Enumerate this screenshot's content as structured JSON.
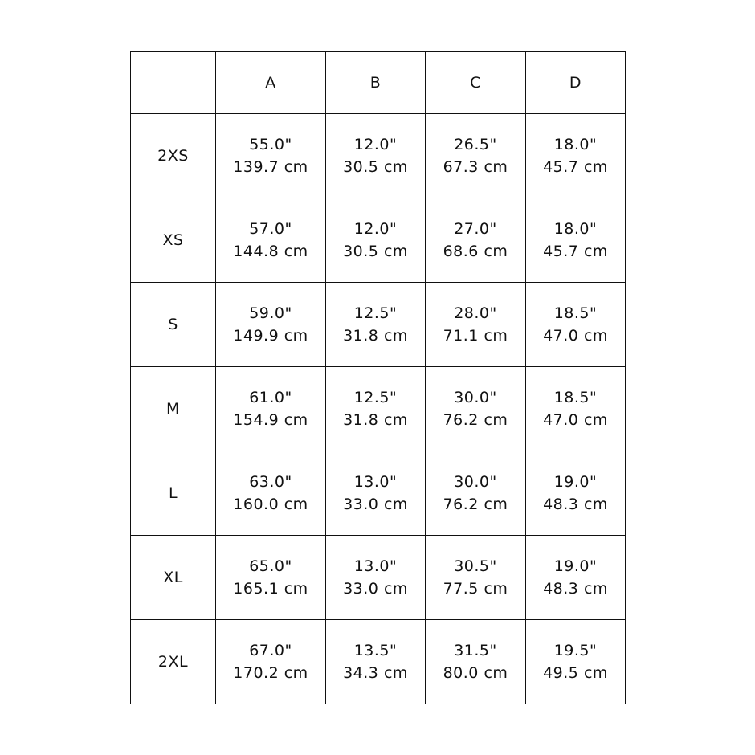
{
  "table": {
    "headers": [
      "",
      "A",
      "B",
      "C",
      "D"
    ],
    "rows": [
      {
        "size": "2XS",
        "cells": [
          [
            "55.0\"",
            "139.7 cm"
          ],
          [
            "12.0\"",
            "30.5 cm"
          ],
          [
            "26.5\"",
            "67.3 cm"
          ],
          [
            "18.0\"",
            "45.7 cm"
          ]
        ]
      },
      {
        "size": "XS",
        "cells": [
          [
            "57.0\"",
            "144.8 cm"
          ],
          [
            "12.0\"",
            "30.5 cm"
          ],
          [
            "27.0\"",
            "68.6 cm"
          ],
          [
            "18.0\"",
            "45.7 cm"
          ]
        ]
      },
      {
        "size": "S",
        "cells": [
          [
            "59.0\"",
            "149.9 cm"
          ],
          [
            "12.5\"",
            "31.8 cm"
          ],
          [
            "28.0\"",
            "71.1 cm"
          ],
          [
            "18.5\"",
            "47.0 cm"
          ]
        ]
      },
      {
        "size": "M",
        "cells": [
          [
            "61.0\"",
            "154.9 cm"
          ],
          [
            "12.5\"",
            "31.8 cm"
          ],
          [
            "30.0\"",
            "76.2 cm"
          ],
          [
            "18.5\"",
            "47.0 cm"
          ]
        ]
      },
      {
        "size": "L",
        "cells": [
          [
            "63.0\"",
            "160.0 cm"
          ],
          [
            "13.0\"",
            "33.0 cm"
          ],
          [
            "30.0\"",
            "76.2 cm"
          ],
          [
            "19.0\"",
            "48.3 cm"
          ]
        ]
      },
      {
        "size": "XL",
        "cells": [
          [
            "65.0\"",
            "165.1 cm"
          ],
          [
            "13.0\"",
            "33.0 cm"
          ],
          [
            "30.5\"",
            "77.5 cm"
          ],
          [
            "19.0\"",
            "48.3 cm"
          ]
        ]
      },
      {
        "size": "2XL",
        "cells": [
          [
            "67.0\"",
            "170.2 cm"
          ],
          [
            "13.5\"",
            "34.3 cm"
          ],
          [
            "31.5\"",
            "80.0 cm"
          ],
          [
            "19.5\"",
            "49.5 cm"
          ]
        ]
      }
    ]
  }
}
